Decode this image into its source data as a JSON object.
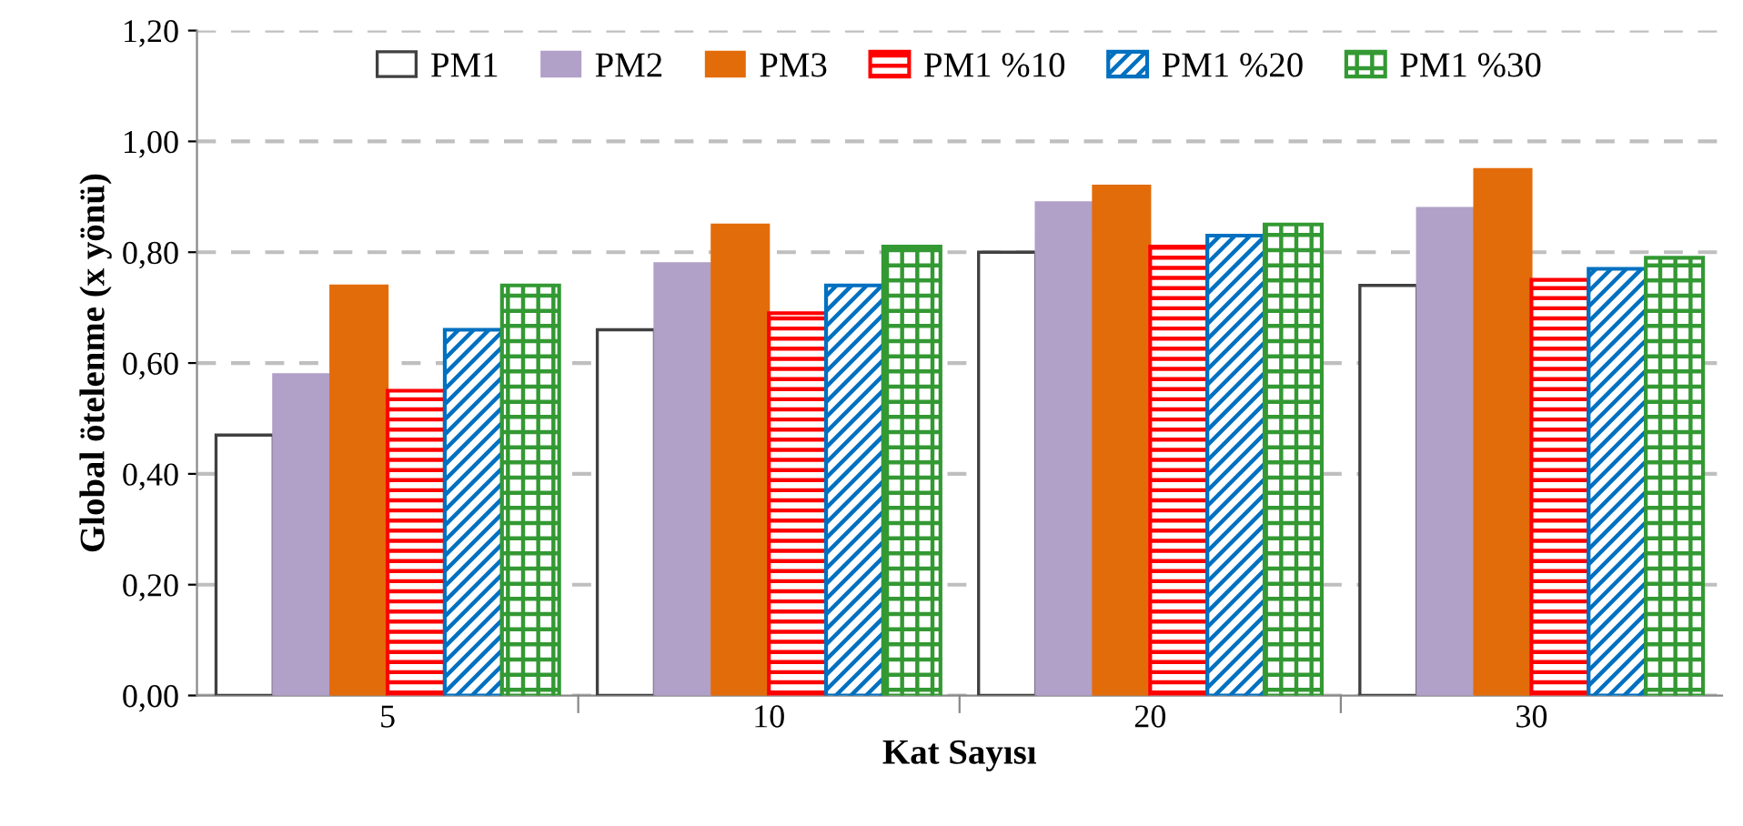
{
  "chart_data": {
    "type": "bar",
    "xlabel": "Kat Sayısı",
    "ylabel": "Global ötelenme (x yönü)",
    "categories": [
      "5",
      "10",
      "20",
      "30"
    ],
    "series": [
      {
        "name": "PM1",
        "color": "#ffffff",
        "values": [
          0.47,
          0.66,
          0.8,
          0.74
        ]
      },
      {
        "name": "PM2",
        "color": "#b1a0c7",
        "values": [
          0.58,
          0.78,
          0.89,
          0.88
        ]
      },
      {
        "name": "PM3",
        "color": "#e36c0a",
        "values": [
          0.74,
          0.85,
          0.92,
          0.95
        ]
      },
      {
        "name": "PM1 %10",
        "color": "#ff0000",
        "values": [
          0.55,
          0.69,
          0.81,
          0.75
        ]
      },
      {
        "name": "PM1 %20",
        "color": "#0070c0",
        "values": [
          0.66,
          0.74,
          0.83,
          0.77
        ]
      },
      {
        "name": "PM1 %30",
        "color": "#339933",
        "values": [
          0.74,
          0.81,
          0.85,
          0.79
        ]
      }
    ],
    "ylim": [
      0,
      1.2
    ],
    "yticks": [
      {
        "value": 0,
        "label": "0,00"
      },
      {
        "value": 0.2,
        "label": "0,20"
      },
      {
        "value": 0.4,
        "label": "0,40"
      },
      {
        "value": 0.6,
        "label": "0,60"
      },
      {
        "value": 0.8,
        "label": "0,80"
      },
      {
        "value": 1.0,
        "label": "1,00"
      },
      {
        "value": 1.2,
        "label": "1,20"
      }
    ],
    "grid": "y",
    "legend": "top"
  }
}
